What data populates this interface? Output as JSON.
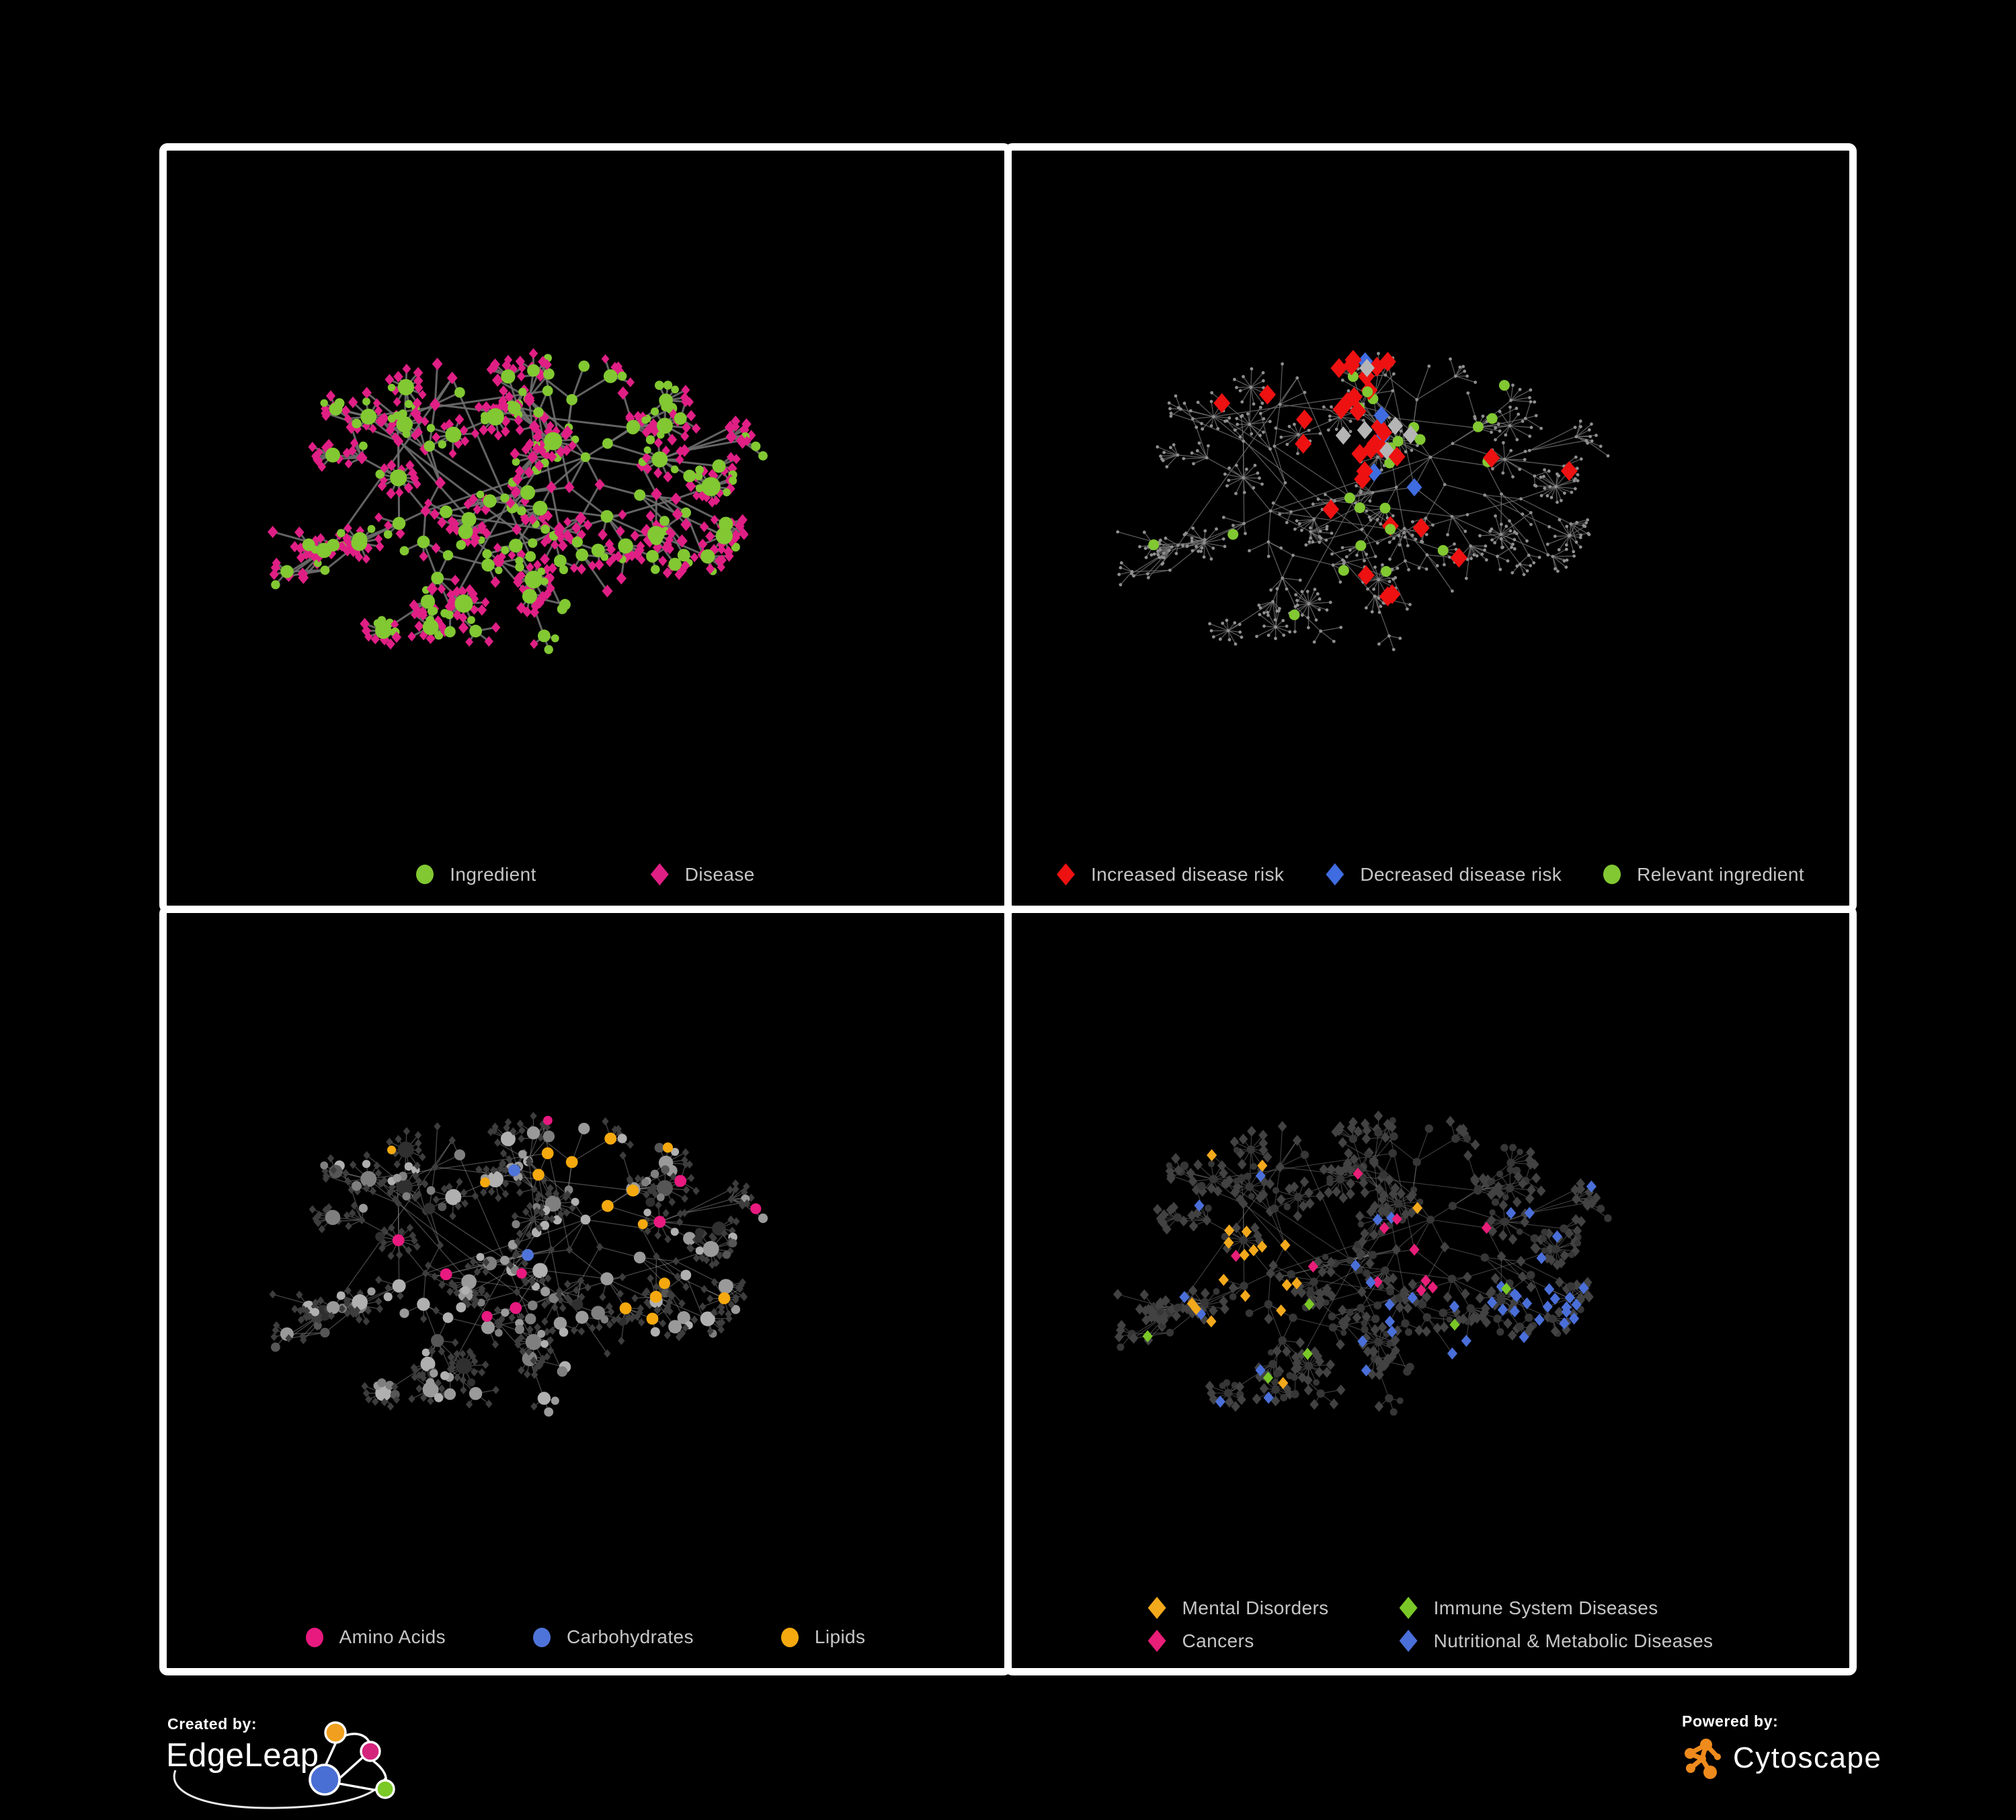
{
  "canvas": {
    "background": "#000000",
    "panel_background": "#000000",
    "panel_border": "#ffffff",
    "legend_text": "#c6c6c6"
  },
  "panels": [
    {
      "id": "ingredient-disease",
      "legend": [
        {
          "label": "Ingredient",
          "shape": "circle",
          "color": "#82c832"
        },
        {
          "label": "Disease",
          "shape": "diamond",
          "color": "#e01f85"
        }
      ],
      "style": {
        "edge": "#6e6e6e",
        "edge_width": 3,
        "edge_opacity": 0.9,
        "ingredient": "#82c832",
        "disease": "#e01f85"
      }
    },
    {
      "id": "disease-risk",
      "legend": [
        {
          "label": "Increased disease risk",
          "shape": "diamond",
          "color": "#ee1111"
        },
        {
          "label": "Decreased disease risk",
          "shape": "diamond",
          "color": "#3f6ce0"
        },
        {
          "label": "Relevant ingredient",
          "shape": "circle",
          "color": "#82c832"
        }
      ],
      "style": {
        "edge": "#6f6f6f",
        "edge_width": 1.3,
        "edge_opacity": 0.8,
        "base": "#8f8f8f",
        "increased": "#ee1111",
        "decreased": "#3f6ce0",
        "neutral": "#b5b5b5",
        "relevant": "#82c832"
      }
    },
    {
      "id": "ingredient-classes",
      "legend": [
        {
          "label": "Amino Acids",
          "shape": "circle",
          "color": "#e8197f"
        },
        {
          "label": "Carbohydrates",
          "shape": "circle",
          "color": "#4f74d9"
        },
        {
          "label": "Lipids",
          "shape": "circle",
          "color": "#f5a90e"
        }
      ],
      "style": {
        "edge": "#9b9b9b",
        "edge_width": 1.3,
        "edge_opacity": 0.45,
        "disease": "#3d3d3d",
        "ingredient_shades": [
          "#b0b0b0",
          "#9a9a9a",
          "#7f7f7f",
          "#565656",
          "#2f2f2f"
        ],
        "amino": "#e8197f",
        "carb": "#4f74d9",
        "lipid": "#f5a90e"
      }
    },
    {
      "id": "disease-classes",
      "legend": [
        {
          "label": "Mental Disorders",
          "shape": "diamond",
          "color": "#f3a91c"
        },
        {
          "label": "Immune System Diseases",
          "shape": "diamond",
          "color": "#7ac827"
        },
        {
          "label": "Cancers",
          "shape": "diamond",
          "color": "#e81e78"
        },
        {
          "label": "Nutritional & Metabolic Diseases",
          "shape": "diamond",
          "color": "#4a6fd9"
        }
      ],
      "legend_columns": 2,
      "style": {
        "edge": "#8d8d8d",
        "edge_width": 1.1,
        "edge_opacity": 0.45,
        "ingredient": "#363636",
        "disease": "#424242",
        "mental": "#f3a91c",
        "immune": "#7ac827",
        "cancer": "#e81e78",
        "nutri": "#4a6fd9"
      }
    }
  ],
  "footer": {
    "created_by": {
      "label": "Created by:",
      "brand": "EdgeLeap",
      "logo_colors": {
        "blue": "#4a6fd4",
        "orange": "#f0a01e",
        "pink": "#d4247c",
        "green": "#7ac926",
        "line": "#ffffff"
      }
    },
    "powered_by": {
      "label": "Powered by:",
      "brand": "Cytoscape",
      "accent": "#ef8b1d"
    }
  }
}
